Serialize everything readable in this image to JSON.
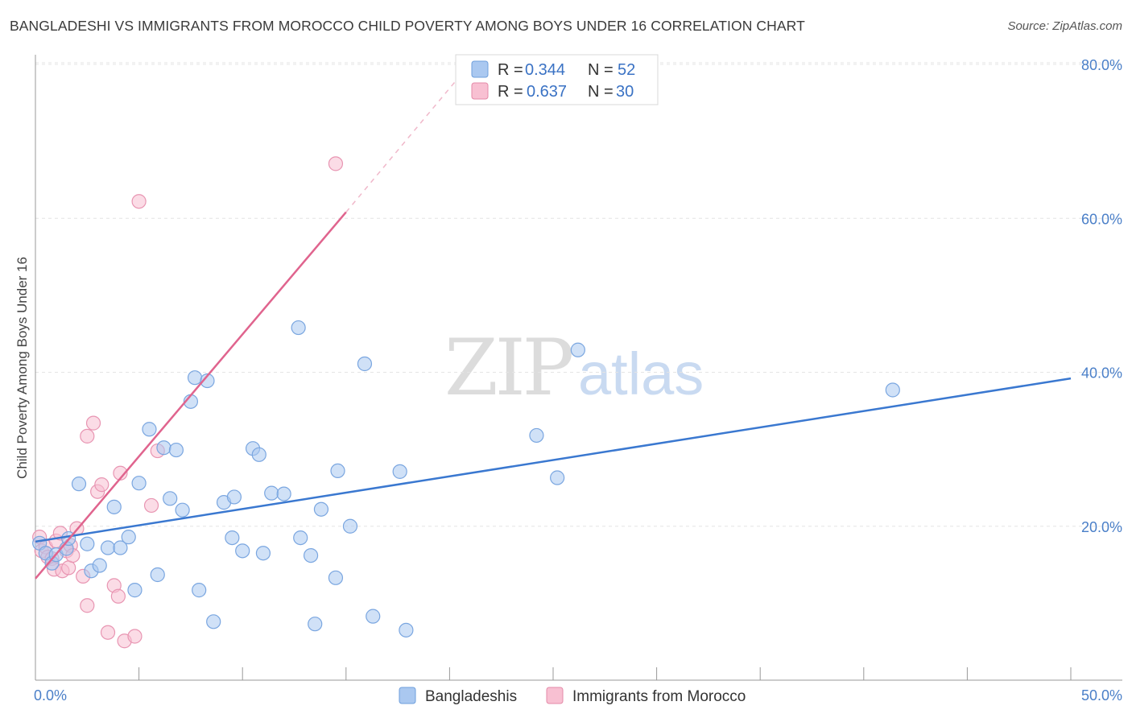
{
  "title": "BANGLADESHI VS IMMIGRANTS FROM MOROCCO CHILD POVERTY AMONG BOYS UNDER 16 CORRELATION CHART",
  "source": "Source: ZipAtlas.com",
  "watermark": {
    "part1": "ZIP",
    "part2": "atlas"
  },
  "legend_stats": [
    {
      "r_label": "R =",
      "r_value": "0.344",
      "n_label": "N =",
      "n_value": "52",
      "color": "#aac8f0",
      "stroke": "#6f9fdc"
    },
    {
      "r_label": "R =",
      "r_value": "0.637",
      "n_label": "N =",
      "n_value": "30",
      "color": "#f8c0d2",
      "stroke": "#e48aa8"
    }
  ],
  "colors": {
    "blue": "#3a78d0",
    "pink": "#e0648e",
    "blue_fill": "#aac8f0",
    "pink_fill": "#f8c0d2"
  },
  "chart_data": {
    "type": "scatter",
    "title": "BANGLADESHI VS IMMIGRANTS FROM MOROCCO CHILD POVERTY AMONG BOYS UNDER 16 CORRELATION CHART",
    "xlabel": "",
    "ylabel": "Child Poverty Among Boys Under 16",
    "xlim": [
      0,
      50
    ],
    "ylim": [
      0,
      80
    ],
    "x_tick_labels": [
      "0.0%",
      "50.0%"
    ],
    "y_ticks": [
      20,
      40,
      60,
      80
    ],
    "y_tick_labels": [
      "20.0%",
      "40.0%",
      "60.0%",
      "80.0%"
    ],
    "grid": true,
    "legend": "bottom-center",
    "series": [
      {
        "name": "Bangladeshis",
        "color": "#aac8f0",
        "trend": {
          "x0": 0,
          "y0": 18.0,
          "x1": 50,
          "y1": 39.2,
          "dashed_from": null
        },
        "points": [
          [
            0.2,
            17.8
          ],
          [
            0.5,
            16.5
          ],
          [
            0.8,
            15.2
          ],
          [
            1.0,
            16.3
          ],
          [
            1.5,
            17.1
          ],
          [
            1.6,
            18.4
          ],
          [
            2.1,
            25.5
          ],
          [
            2.5,
            17.7
          ],
          [
            2.7,
            14.2
          ],
          [
            3.1,
            14.9
          ],
          [
            3.5,
            17.2
          ],
          [
            3.8,
            22.5
          ],
          [
            4.1,
            17.2
          ],
          [
            4.5,
            18.6
          ],
          [
            4.8,
            11.7
          ],
          [
            5.0,
            25.6
          ],
          [
            5.5,
            32.6
          ],
          [
            5.9,
            13.7
          ],
          [
            6.2,
            30.2
          ],
          [
            6.5,
            23.6
          ],
          [
            6.8,
            29.9
          ],
          [
            7.1,
            22.1
          ],
          [
            7.5,
            36.2
          ],
          [
            7.7,
            39.3
          ],
          [
            7.9,
            11.7
          ],
          [
            8.3,
            38.9
          ],
          [
            8.6,
            7.6
          ],
          [
            9.1,
            23.1
          ],
          [
            9.5,
            18.5
          ],
          [
            9.6,
            23.8
          ],
          [
            10.0,
            16.8
          ],
          [
            10.5,
            30.1
          ],
          [
            10.8,
            29.3
          ],
          [
            11.0,
            16.5
          ],
          [
            11.4,
            24.3
          ],
          [
            12.0,
            24.2
          ],
          [
            12.7,
            45.8
          ],
          [
            12.8,
            18.5
          ],
          [
            13.3,
            16.2
          ],
          [
            13.5,
            7.3
          ],
          [
            13.8,
            22.2
          ],
          [
            14.5,
            13.3
          ],
          [
            14.6,
            27.2
          ],
          [
            15.2,
            20.0
          ],
          [
            15.9,
            41.1
          ],
          [
            16.3,
            8.3
          ],
          [
            17.6,
            27.1
          ],
          [
            17.9,
            6.5
          ],
          [
            24.2,
            31.8
          ],
          [
            25.2,
            26.3
          ],
          [
            26.2,
            42.9
          ],
          [
            41.4,
            37.7
          ]
        ]
      },
      {
        "name": "Immigrants from Morocco",
        "color": "#f8c0d2",
        "trend": {
          "x0": 0,
          "y0": 13.2,
          "x1": 15,
          "y1": 60.8,
          "dashed_from": 15,
          "x2": 20.5,
          "y2": 78.5
        },
        "points": [
          [
            0.2,
            18.6
          ],
          [
            0.3,
            16.8
          ],
          [
            0.5,
            17.3
          ],
          [
            0.6,
            16.0
          ],
          [
            0.8,
            15.8
          ],
          [
            0.9,
            14.4
          ],
          [
            1.0,
            18.1
          ],
          [
            1.2,
            19.1
          ],
          [
            1.3,
            14.2
          ],
          [
            1.5,
            16.8
          ],
          [
            1.6,
            14.6
          ],
          [
            1.7,
            17.5
          ],
          [
            1.8,
            16.2
          ],
          [
            2.0,
            19.7
          ],
          [
            2.3,
            13.5
          ],
          [
            2.5,
            9.7
          ],
          [
            2.5,
            31.7
          ],
          [
            2.8,
            33.4
          ],
          [
            3.0,
            24.5
          ],
          [
            3.2,
            25.4
          ],
          [
            3.5,
            6.2
          ],
          [
            3.8,
            12.3
          ],
          [
            4.0,
            10.9
          ],
          [
            4.1,
            26.9
          ],
          [
            4.3,
            5.1
          ],
          [
            4.8,
            5.7
          ],
          [
            5.0,
            62.2
          ],
          [
            5.6,
            22.7
          ],
          [
            5.9,
            29.8
          ],
          [
            14.5,
            67.1
          ]
        ]
      }
    ]
  }
}
